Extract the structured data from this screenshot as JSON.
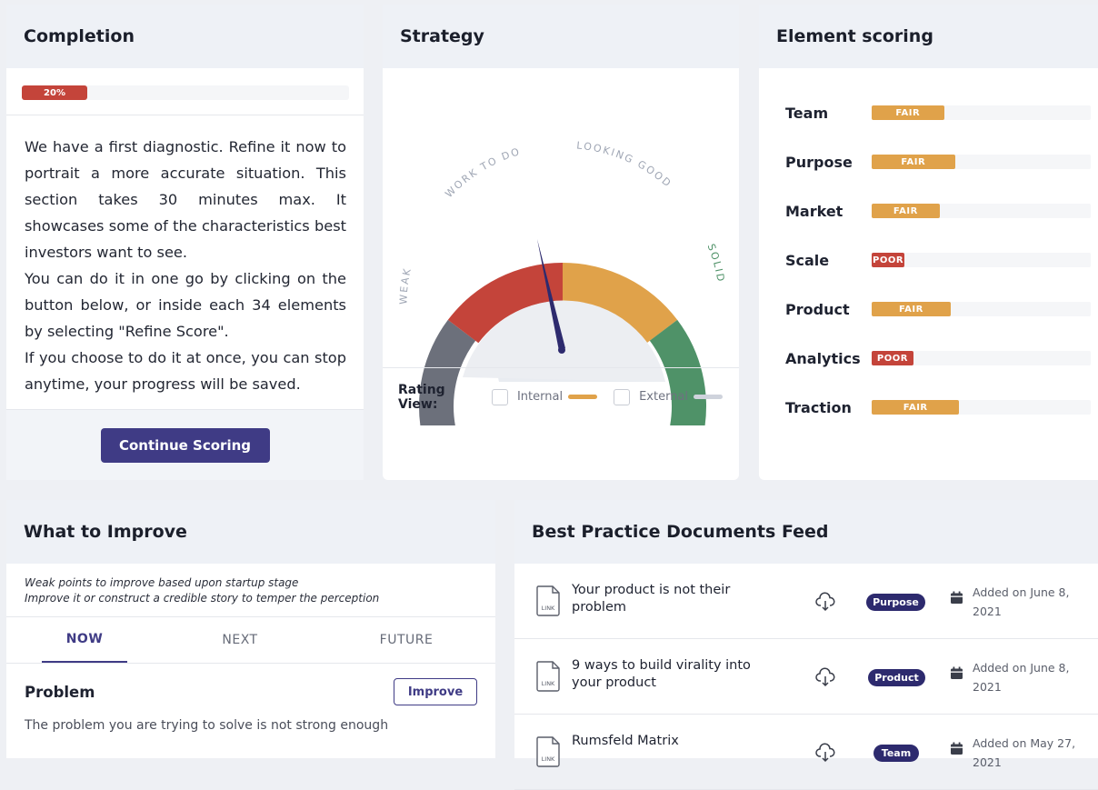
{
  "completion": {
    "title": "Completion",
    "progress_label": "20%",
    "progress_value": 0.2,
    "paragraphs": [
      "We have a first diagnostic. Refine it now to portrait a more accurate situation. This section takes 30 minutes max. It showcases some of the characteristics best investors want to see.",
      "You can do it in one go by clicking on the button below, or inside each 34 elements by selecting \"Refine Score\".",
      "If you choose to do it at once, you can stop anytime, your progress will be saved."
    ],
    "button_label": "Continue Scoring"
  },
  "strategy": {
    "title": "Strategy",
    "gauge_labels": [
      "WEAK",
      "WORK TO DO",
      "LOOKING GOOD",
      "SOLID"
    ],
    "gauge_colors": [
      "#6c707b",
      "#c4443a",
      "#e0a24a",
      "#4f9268"
    ],
    "rating_view_label": "Rating View:",
    "internal_label": "Internal",
    "external_label": "External",
    "internal_color": "#e0a24a",
    "external_color": "#cfd3dc"
  },
  "scoring": {
    "title": "Element scoring",
    "items": [
      {
        "name": "Team",
        "rating": "FAIR",
        "value": 0.33,
        "color": "#e0a24a"
      },
      {
        "name": "Purpose",
        "rating": "FAIR",
        "value": 0.38,
        "color": "#e0a24a"
      },
      {
        "name": "Market",
        "rating": "FAIR",
        "value": 0.31,
        "color": "#e0a24a"
      },
      {
        "name": "Scale",
        "rating": "POOR",
        "value": 0.15,
        "color": "#c4443a"
      },
      {
        "name": "Product",
        "rating": "FAIR",
        "value": 0.36,
        "color": "#e0a24a"
      },
      {
        "name": "Analytics",
        "rating": "POOR",
        "value": 0.19,
        "color": "#c4443a"
      },
      {
        "name": "Traction",
        "rating": "FAIR",
        "value": 0.4,
        "color": "#e0a24a"
      }
    ]
  },
  "improve": {
    "title": "What to Improve",
    "desc_line1": "Weak points to improve based upon startup stage",
    "desc_line2": "Improve it or construct a credible story to temper the perception",
    "tabs": [
      "NOW",
      "NEXT",
      "FUTURE"
    ],
    "problem_title": "Problem",
    "improve_button": "Improve",
    "problem_desc": "The problem you are trying to solve is not strong enough"
  },
  "feed": {
    "title": "Best Practice Documents Feed",
    "link_label": "LINK",
    "docs": [
      {
        "title": "Your product is not their problem",
        "tag": "Purpose",
        "date": "Added on June 8, 2021"
      },
      {
        "title": "9 ways to build virality into your product",
        "tag": "Product",
        "date": "Added on June 8, 2021"
      },
      {
        "title": "Rumsfeld Matrix",
        "tag": "Team",
        "date": "Added on May 27, 2021"
      }
    ]
  }
}
